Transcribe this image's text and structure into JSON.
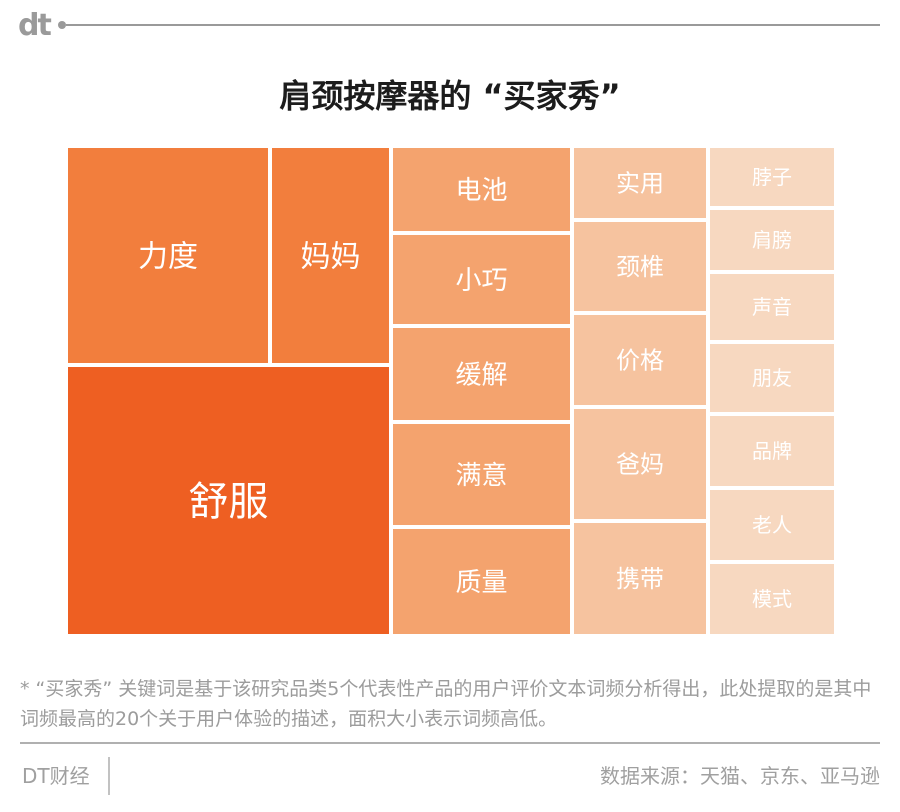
{
  "title": "肩颈按摩器的 “买家秀”",
  "chart_data": {
    "type": "treemap",
    "title": "肩颈按摩器的 “买家秀”",
    "colors": {
      "舒服": "#ee5f22",
      "level1": "#f27e3d",
      "level2": "#f4a36e",
      "level3": "#f6c39f",
      "level4": "#f7d8c0"
    },
    "items": [
      {
        "label": "舒服",
        "rank": 1
      },
      {
        "label": "力度",
        "rank": 2
      },
      {
        "label": "妈妈",
        "rank": 3
      },
      {
        "label": "电池",
        "rank": 4
      },
      {
        "label": "小巧",
        "rank": 5
      },
      {
        "label": "缓解",
        "rank": 6
      },
      {
        "label": "满意",
        "rank": 7
      },
      {
        "label": "质量",
        "rank": 8
      },
      {
        "label": "实用",
        "rank": 9
      },
      {
        "label": "颈椎",
        "rank": 10
      },
      {
        "label": "价格",
        "rank": 11
      },
      {
        "label": "爸妈",
        "rank": 12
      },
      {
        "label": "携带",
        "rank": 13
      },
      {
        "label": "脖子",
        "rank": 14
      },
      {
        "label": "肩膀",
        "rank": 15
      },
      {
        "label": "声音",
        "rank": 16
      },
      {
        "label": "朋友",
        "rank": 17
      },
      {
        "label": "品牌",
        "rank": 18
      },
      {
        "label": "老人",
        "rank": 19
      },
      {
        "label": "模式",
        "rank": 20
      }
    ]
  },
  "note": "* “买家秀” 关键词是基于该研究品类5个代表性产品的用户评价文本词频分析得出，此处提取的是其中词频最高的20个关于用户体验的描述，面积大小表示词频高低。",
  "footer": {
    "brand": "DT财经",
    "source": "数据来源：天猫、京东、亚马逊"
  },
  "logo": "dt"
}
